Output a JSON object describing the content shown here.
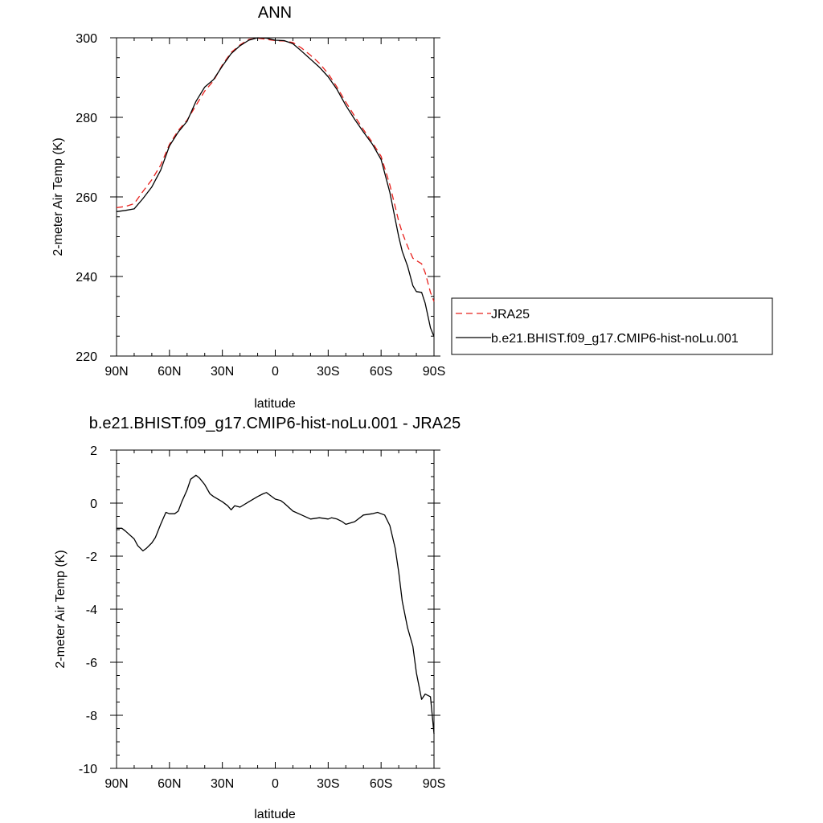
{
  "chart_data": [
    {
      "type": "line",
      "title": "ANN",
      "xlabel": "latitude",
      "ylabel": "2-meter Air Temp (K)",
      "xlim": [
        90,
        -90
      ],
      "ylim": [
        220,
        300
      ],
      "x_ticks": [
        90,
        60,
        30,
        0,
        -30,
        -60,
        -90
      ],
      "x_tick_labels": [
        "90N",
        "60N",
        "30N",
        "0",
        "30S",
        "60S",
        "90S"
      ],
      "y_ticks": [
        220,
        240,
        260,
        280,
        300
      ],
      "y_tick_labels": [
        "220",
        "240",
        "260",
        "280",
        "300"
      ],
      "legend_position": "right",
      "series": [
        {
          "name": "JRA25",
          "color": "#e8201c",
          "dash": "dashed",
          "x": [
            90,
            85,
            80,
            75,
            70,
            65,
            60,
            55,
            50,
            45,
            40,
            35,
            30,
            25,
            20,
            15,
            10,
            5,
            0,
            -5,
            -10,
            -15,
            -20,
            -25,
            -30,
            -35,
            -40,
            -45,
            -50,
            -55,
            -60,
            -65,
            -70,
            -72,
            -75,
            -78,
            -80,
            -83,
            -85,
            -88,
            -90
          ],
          "y": [
            257.3,
            257.6,
            258.3,
            261.4,
            264.3,
            268.0,
            273.2,
            276.7,
            279.3,
            283.0,
            286.6,
            289.2,
            293.2,
            296.3,
            298.2,
            299.6,
            299.9,
            299.6,
            299.3,
            299.2,
            298.8,
            297.4,
            295.6,
            293.6,
            291.0,
            287.6,
            283.8,
            280.3,
            276.9,
            273.7,
            270.2,
            263.0,
            253.9,
            251.0,
            247.6,
            244.6,
            244.0,
            243.2,
            241.0,
            236.0,
            233.7
          ]
        },
        {
          "name": "b.e21.BHIST.f09_g17.CMIP6-hist-noLu.001",
          "color": "#000000",
          "dash": "solid",
          "x": [
            90,
            85,
            80,
            75,
            70,
            65,
            60,
            55,
            50,
            45,
            40,
            35,
            30,
            25,
            20,
            15,
            10,
            5,
            0,
            -5,
            -10,
            -15,
            -20,
            -25,
            -30,
            -35,
            -40,
            -45,
            -50,
            -55,
            -60,
            -65,
            -70,
            -72,
            -75,
            -78,
            -80,
            -83,
            -85,
            -88,
            -90
          ],
          "y": [
            256.3,
            256.6,
            257.0,
            259.6,
            262.5,
            266.7,
            272.8,
            276.3,
            279.0,
            284.0,
            287.6,
            289.5,
            292.9,
            296.0,
            298.0,
            299.4,
            300.0,
            299.9,
            299.4,
            299.3,
            298.5,
            296.6,
            294.6,
            292.6,
            290.2,
            287.0,
            283.0,
            279.5,
            276.3,
            273.3,
            269.4,
            261.1,
            250.0,
            246.3,
            242.6,
            237.7,
            236.2,
            236.0,
            233.3,
            227.1,
            224.9
          ]
        }
      ]
    },
    {
      "type": "line",
      "title": "b.e21.BHIST.f09_g17.CMIP6-hist-noLu.001 - JRA25",
      "xlabel": "latitude",
      "ylabel": "2-meter Air Temp (K)",
      "xlim": [
        90,
        -90
      ],
      "ylim": [
        -10,
        2
      ],
      "x_ticks": [
        90,
        60,
        30,
        0,
        -30,
        -60,
        -90
      ],
      "x_tick_labels": [
        "90N",
        "60N",
        "30N",
        "0",
        "30S",
        "60S",
        "90S"
      ],
      "y_ticks": [
        -10,
        -8,
        -6,
        -4,
        -2,
        0,
        2
      ],
      "y_tick_labels": [
        "-10",
        "-8",
        "-6",
        "-4",
        "-2",
        "0",
        "2"
      ],
      "series": [
        {
          "color": "#000000",
          "dash": "solid",
          "x": [
            90,
            87,
            85,
            80,
            78,
            75,
            73,
            70,
            68,
            65,
            62,
            60,
            57,
            55,
            53,
            50,
            48,
            45,
            43,
            40,
            37,
            35,
            30,
            27,
            25,
            23,
            20,
            15,
            10,
            7,
            5,
            3,
            0,
            -3,
            -5,
            -10,
            -15,
            -20,
            -25,
            -30,
            -32,
            -35,
            -38,
            -40,
            -45,
            -50,
            -55,
            -58,
            -60,
            -62,
            -65,
            -68,
            -70,
            -72,
            -75,
            -78,
            -80,
            -83,
            -85,
            -88,
            -90
          ],
          "y": [
            -0.95,
            -0.95,
            -1.05,
            -1.35,
            -1.6,
            -1.8,
            -1.7,
            -1.5,
            -1.3,
            -0.8,
            -0.35,
            -0.4,
            -0.4,
            -0.3,
            0.05,
            0.5,
            0.9,
            1.05,
            0.95,
            0.7,
            0.35,
            0.25,
            0.05,
            -0.1,
            -0.25,
            -0.1,
            -0.15,
            0.05,
            0.25,
            0.35,
            0.4,
            0.3,
            0.15,
            0.1,
            0.0,
            -0.3,
            -0.45,
            -0.6,
            -0.55,
            -0.6,
            -0.55,
            -0.6,
            -0.7,
            -0.8,
            -0.7,
            -0.45,
            -0.4,
            -0.35,
            -0.4,
            -0.45,
            -0.85,
            -1.7,
            -2.6,
            -3.7,
            -4.7,
            -5.4,
            -6.4,
            -7.4,
            -7.2,
            -7.3,
            -8.7
          ]
        }
      ]
    }
  ]
}
